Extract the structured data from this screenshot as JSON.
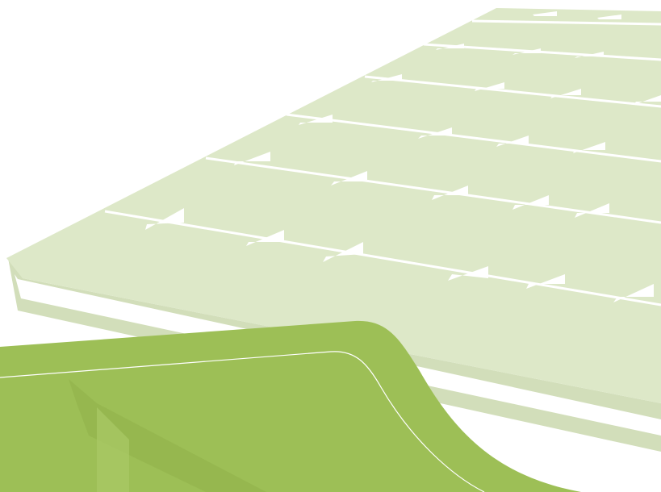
{
  "colors": {
    "background": "#ffffff",
    "panel_face": "#dde8c8",
    "panel_edge": "#e6eed6",
    "panel_side": "#ffffff",
    "panel_shadow": "#d2deba",
    "cell_gap": "#ffffff",
    "wave_main": "#9dbf56",
    "wave_light": "#a9c966",
    "wave_shadow": "#8fb14a",
    "wave_line": "#ffffff"
  },
  "icons": {
    "panel": "solar-panel-illustration",
    "wave": "green-wave-shape"
  }
}
